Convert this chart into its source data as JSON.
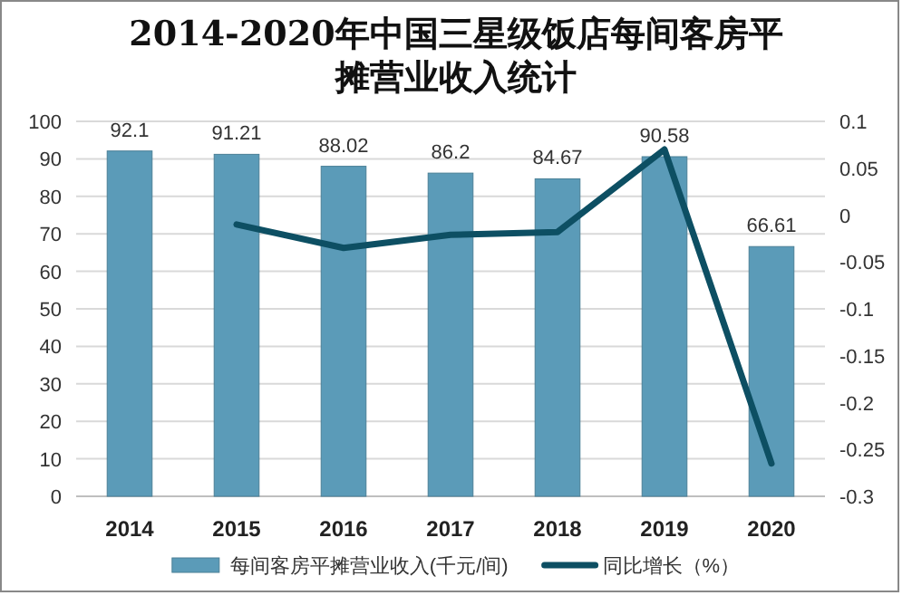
{
  "chart_data": {
    "type": "bar",
    "title": "2014-2020年中国三星级饭店每间客房平摊营业收入统计",
    "categories": [
      "2014",
      "2015",
      "2016",
      "2017",
      "2018",
      "2019",
      "2020"
    ],
    "series": [
      {
        "name": "每间客房平摊营业收入(千元/间)",
        "color": "#5b9bb8",
        "values": [
          92.1,
          91.21,
          88.02,
          86.2,
          84.67,
          90.58,
          66.61
        ],
        "value_labels": [
          "92.1",
          "91.21",
          "88.02",
          "86.2",
          "84.67",
          "90.58",
          "66.61"
        ]
      },
      {
        "name": "同比增长（%）",
        "type": "line",
        "axis": "y2",
        "color": "#0d4f63",
        "values": [
          null,
          -0.01,
          -0.035,
          -0.021,
          -0.018,
          0.07,
          -0.265
        ]
      }
    ],
    "ylim": [
      0,
      100
    ],
    "yticks": [
      0,
      10,
      20,
      30,
      40,
      50,
      60,
      70,
      80,
      90,
      100
    ],
    "y2lim": [
      -0.3,
      0.1
    ],
    "y2ticks": [
      -0.3,
      -0.25,
      -0.2,
      -0.15,
      -0.1,
      -0.05,
      0,
      0.05,
      0.1
    ],
    "grid": "y",
    "legend": "bottom"
  }
}
